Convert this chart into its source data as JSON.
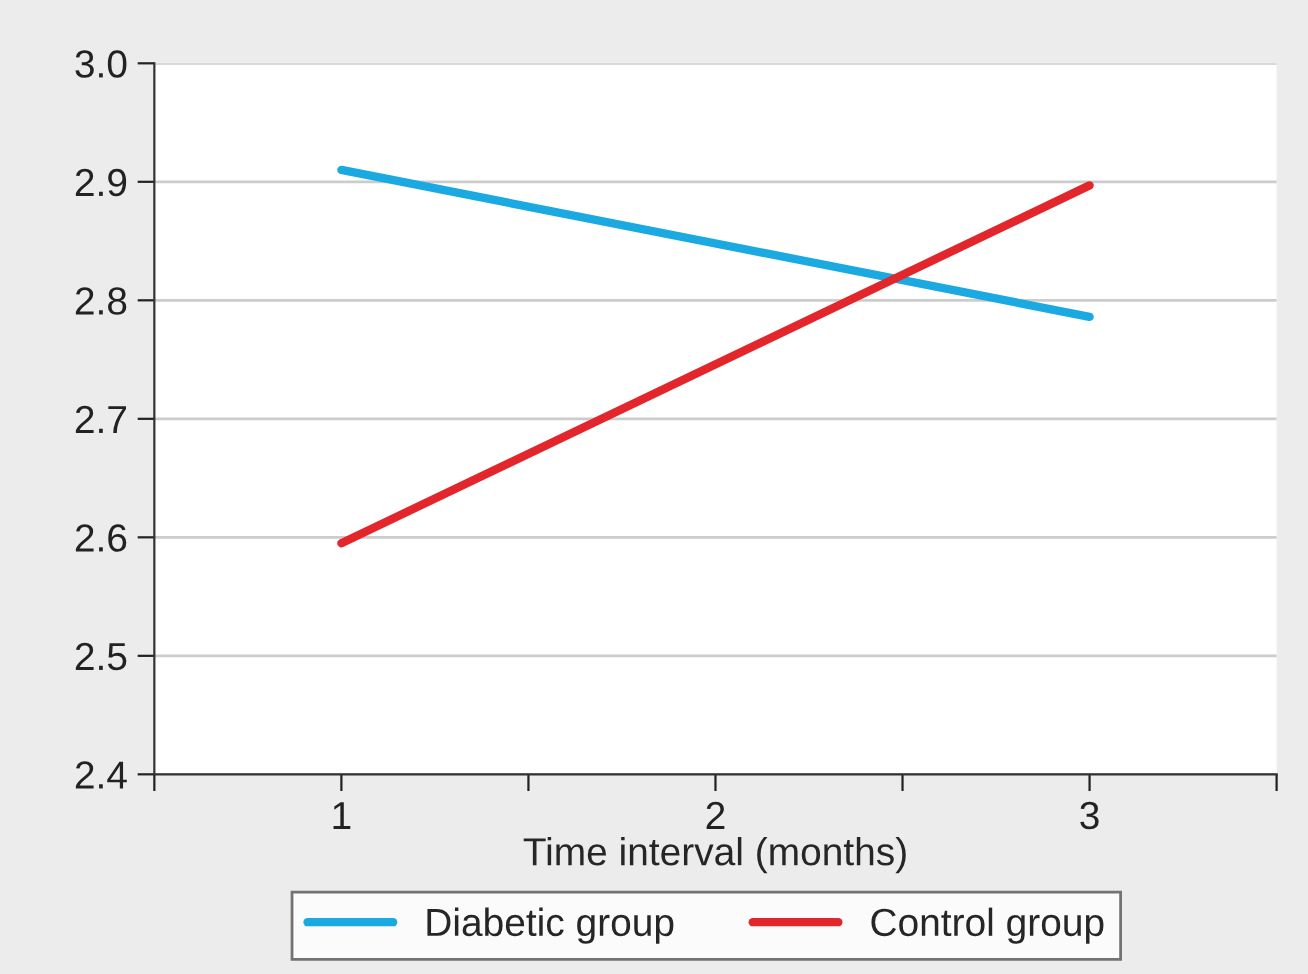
{
  "chart_data": {
    "type": "line",
    "xlabel": "Time interval (months)",
    "x": [
      1,
      3
    ],
    "series": [
      {
        "name": "Diabetic group",
        "color": "#1aa9e0",
        "values": [
          2.91,
          2.786
        ]
      },
      {
        "name": "Control group",
        "color": "#e3262b",
        "values": [
          2.595,
          2.897
        ]
      }
    ],
    "xlim": [
      0.5,
      3.5
    ],
    "xticks": [
      {
        "value": 0.5,
        "label": null
      },
      1,
      {
        "value": 1.5,
        "label": null
      },
      2,
      {
        "value": 2.5,
        "label": null
      },
      3,
      {
        "value": 3.5,
        "label": null
      }
    ],
    "ylim": [
      2.4,
      3.0
    ],
    "yticks": [
      2.4,
      2.5,
      2.6,
      2.7,
      2.8,
      2.9,
      {
        "value": 3.0,
        "label": "3.0"
      }
    ],
    "grid": "y",
    "legend": "bottom",
    "marker": "none",
    "line_style": "solid"
  }
}
